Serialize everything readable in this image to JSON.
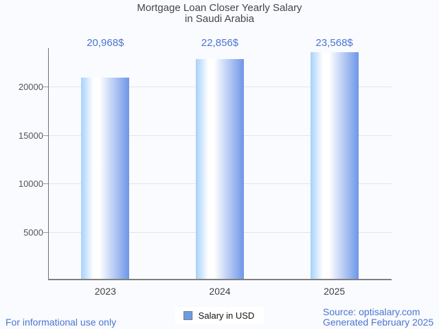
{
  "title": {
    "line1": "Mortgage Loan Closer Yearly Salary",
    "line2": "in Saudi Arabia"
  },
  "chart_data": {
    "type": "bar",
    "title": "Mortgage Loan Closer Yearly Salary in Saudi Arabia",
    "categories": [
      "2023",
      "2024",
      "2025"
    ],
    "series": [
      {
        "name": "Salary in USD",
        "values": [
          20968,
          22856,
          23568
        ]
      }
    ],
    "value_labels": [
      "20,968$",
      "22,856$",
      "23,568$"
    ],
    "xlabel": "",
    "ylabel": "",
    "ylim": [
      0,
      24000
    ],
    "yticks": [
      5000,
      10000,
      15000,
      20000
    ],
    "grid": true,
    "legend_position": "bottom",
    "bar_gradient": [
      "#a7d1fb",
      "#ffffff",
      "#6e96e8"
    ]
  },
  "legend": {
    "label": "Salary in USD",
    "swatch_color": "#6b9be4"
  },
  "footer": {
    "left": "For informational use only",
    "source": "Source: optisalary.com",
    "generated": "Generated February 2025"
  },
  "colors": {
    "background": "#fafbfe",
    "accent_blue": "#4a74d2",
    "title_text": "#454545",
    "axis_line": "#7f7f7f",
    "gridline": "#e3e4e8"
  }
}
